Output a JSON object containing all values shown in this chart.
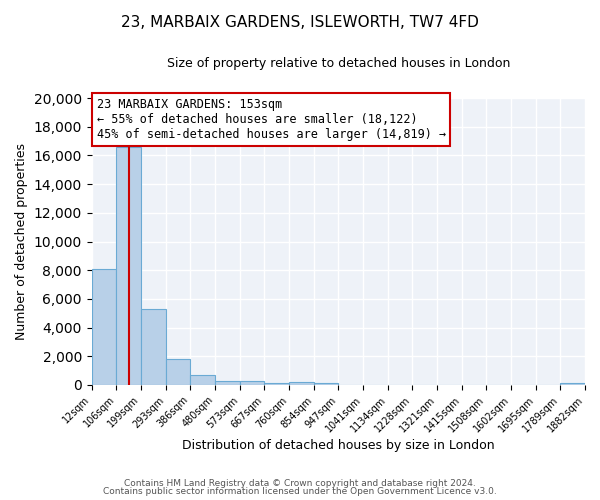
{
  "title": "23, MARBAIX GARDENS, ISLEWORTH, TW7 4FD",
  "subtitle": "Size of property relative to detached houses in London",
  "xlabel": "Distribution of detached houses by size in London",
  "ylabel": "Number of detached properties",
  "bin_labels": [
    "12sqm",
    "106sqm",
    "199sqm",
    "293sqm",
    "386sqm",
    "480sqm",
    "573sqm",
    "667sqm",
    "760sqm",
    "854sqm",
    "947sqm",
    "1041sqm",
    "1134sqm",
    "1228sqm",
    "1321sqm",
    "1415sqm",
    "1508sqm",
    "1602sqm",
    "1695sqm",
    "1789sqm",
    "1882sqm"
  ],
  "bar_heights": [
    8100,
    16600,
    5300,
    1800,
    700,
    300,
    250,
    150,
    200,
    150,
    0,
    0,
    0,
    0,
    0,
    0,
    0,
    0,
    0,
    150,
    0
  ],
  "bar_color": "#b8d0e8",
  "bar_edge_color": "#6aaad4",
  "annotation_title": "23 MARBAIX GARDENS: 153sqm",
  "annotation_line1": "← 55% of detached houses are smaller (18,122)",
  "annotation_line2": "45% of semi-detached houses are larger (14,819) →",
  "annotation_box_color": "#ffffff",
  "annotation_box_edge_color": "#cc0000",
  "vline_color": "#cc0000",
  "ylim": [
    0,
    20000
  ],
  "yticks": [
    0,
    2000,
    4000,
    6000,
    8000,
    10000,
    12000,
    14000,
    16000,
    18000,
    20000
  ],
  "footer1": "Contains HM Land Registry data © Crown copyright and database right 2024.",
  "footer2": "Contains public sector information licensed under the Open Government Licence v3.0.",
  "background_color": "#eef2f8",
  "grid_color": "#ffffff",
  "fig_bg_color": "#ffffff"
}
